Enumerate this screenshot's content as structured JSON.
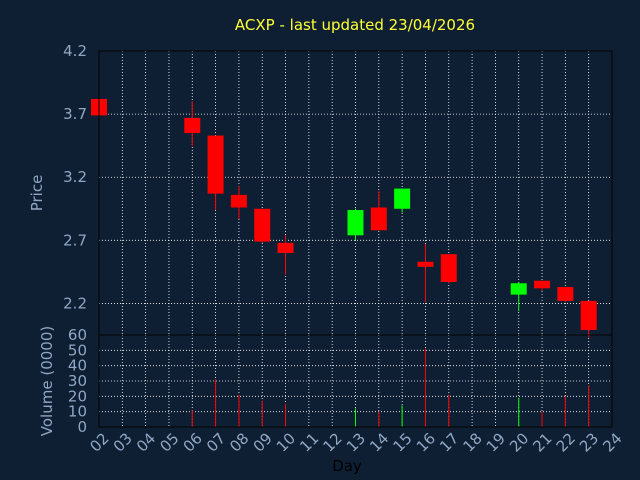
{
  "title": "ACXP - last updated 23/04/2026",
  "colors": {
    "background": "#0f1f33",
    "axis_text": "#8fa7c4",
    "title": "#ffff33",
    "up": "#00ff00",
    "down": "#ff0000",
    "grid": "#ffffff"
  },
  "chart_data": [
    {
      "type": "candlestick",
      "ylabel": "Price",
      "ylim": [
        1.95,
        4.2
      ],
      "yticks": [
        "4.2",
        "3.7",
        "3.2",
        "2.7",
        "2.2"
      ],
      "x": [
        "02",
        "03",
        "04",
        "05",
        "06",
        "07",
        "08",
        "09",
        "10",
        "11",
        "12",
        "13",
        "14",
        "15",
        "16",
        "17",
        "18",
        "19",
        "20",
        "21",
        "22",
        "23",
        "24"
      ],
      "grid": true,
      "candles": [
        {
          "day": "02",
          "open": 3.82,
          "high": 3.82,
          "low": 3.69,
          "close": 3.69
        },
        {
          "day": "06",
          "open": 3.67,
          "high": 3.8,
          "low": 3.45,
          "close": 3.55
        },
        {
          "day": "07",
          "open": 3.53,
          "high": 3.53,
          "low": 2.94,
          "close": 3.07
        },
        {
          "day": "08",
          "open": 3.06,
          "high": 3.13,
          "low": 2.87,
          "close": 2.96
        },
        {
          "day": "09",
          "open": 2.95,
          "high": 2.95,
          "low": 2.68,
          "close": 2.69
        },
        {
          "day": "10",
          "open": 2.68,
          "high": 2.74,
          "low": 2.43,
          "close": 2.6
        },
        {
          "day": "13",
          "open": 2.74,
          "high": 2.95,
          "low": 2.7,
          "close": 2.94
        },
        {
          "day": "14",
          "open": 2.96,
          "high": 3.09,
          "low": 2.78,
          "close": 2.78
        },
        {
          "day": "15",
          "open": 2.95,
          "high": 3.11,
          "low": 2.92,
          "close": 3.11
        },
        {
          "day": "16",
          "open": 2.53,
          "high": 2.67,
          "low": 2.21,
          "close": 2.49
        },
        {
          "day": "17",
          "open": 2.59,
          "high": 2.59,
          "low": 2.36,
          "close": 2.37
        },
        {
          "day": "20",
          "open": 2.27,
          "high": 2.37,
          "low": 2.14,
          "close": 2.36
        },
        {
          "day": "21",
          "open": 2.38,
          "high": 2.38,
          "low": 2.3,
          "close": 2.32
        },
        {
          "day": "22",
          "open": 2.33,
          "high": 2.33,
          "low": 2.21,
          "close": 2.22
        },
        {
          "day": "23",
          "open": 2.22,
          "high": 2.22,
          "low": 1.93,
          "close": 1.99
        }
      ]
    },
    {
      "type": "bar",
      "ylabel": "Volume (0000)",
      "xlabel": "Day",
      "ylim": [
        0,
        60
      ],
      "yticks": [
        "0",
        "10",
        "20",
        "30",
        "40",
        "50",
        "60"
      ],
      "x": [
        "02",
        "03",
        "04",
        "05",
        "06",
        "07",
        "08",
        "09",
        "10",
        "11",
        "12",
        "13",
        "14",
        "15",
        "16",
        "17",
        "18",
        "19",
        "20",
        "21",
        "22",
        "23",
        "24"
      ],
      "grid": true,
      "bars": [
        {
          "day": "02",
          "value": 1,
          "direction": "down"
        },
        {
          "day": "06",
          "value": 11,
          "direction": "down"
        },
        {
          "day": "07",
          "value": 31,
          "direction": "down"
        },
        {
          "day": "08",
          "value": 21,
          "direction": "down"
        },
        {
          "day": "09",
          "value": 17,
          "direction": "down"
        },
        {
          "day": "10",
          "value": 15,
          "direction": "down"
        },
        {
          "day": "13",
          "value": 12,
          "direction": "up"
        },
        {
          "day": "14",
          "value": 10,
          "direction": "down"
        },
        {
          "day": "15",
          "value": 14,
          "direction": "up"
        },
        {
          "day": "16",
          "value": 51,
          "direction": "down"
        },
        {
          "day": "17",
          "value": 21,
          "direction": "down"
        },
        {
          "day": "20",
          "value": 19,
          "direction": "up"
        },
        {
          "day": "21",
          "value": 10,
          "direction": "down"
        },
        {
          "day": "22",
          "value": 20,
          "direction": "down"
        },
        {
          "day": "23",
          "value": 27,
          "direction": "down"
        }
      ]
    }
  ]
}
